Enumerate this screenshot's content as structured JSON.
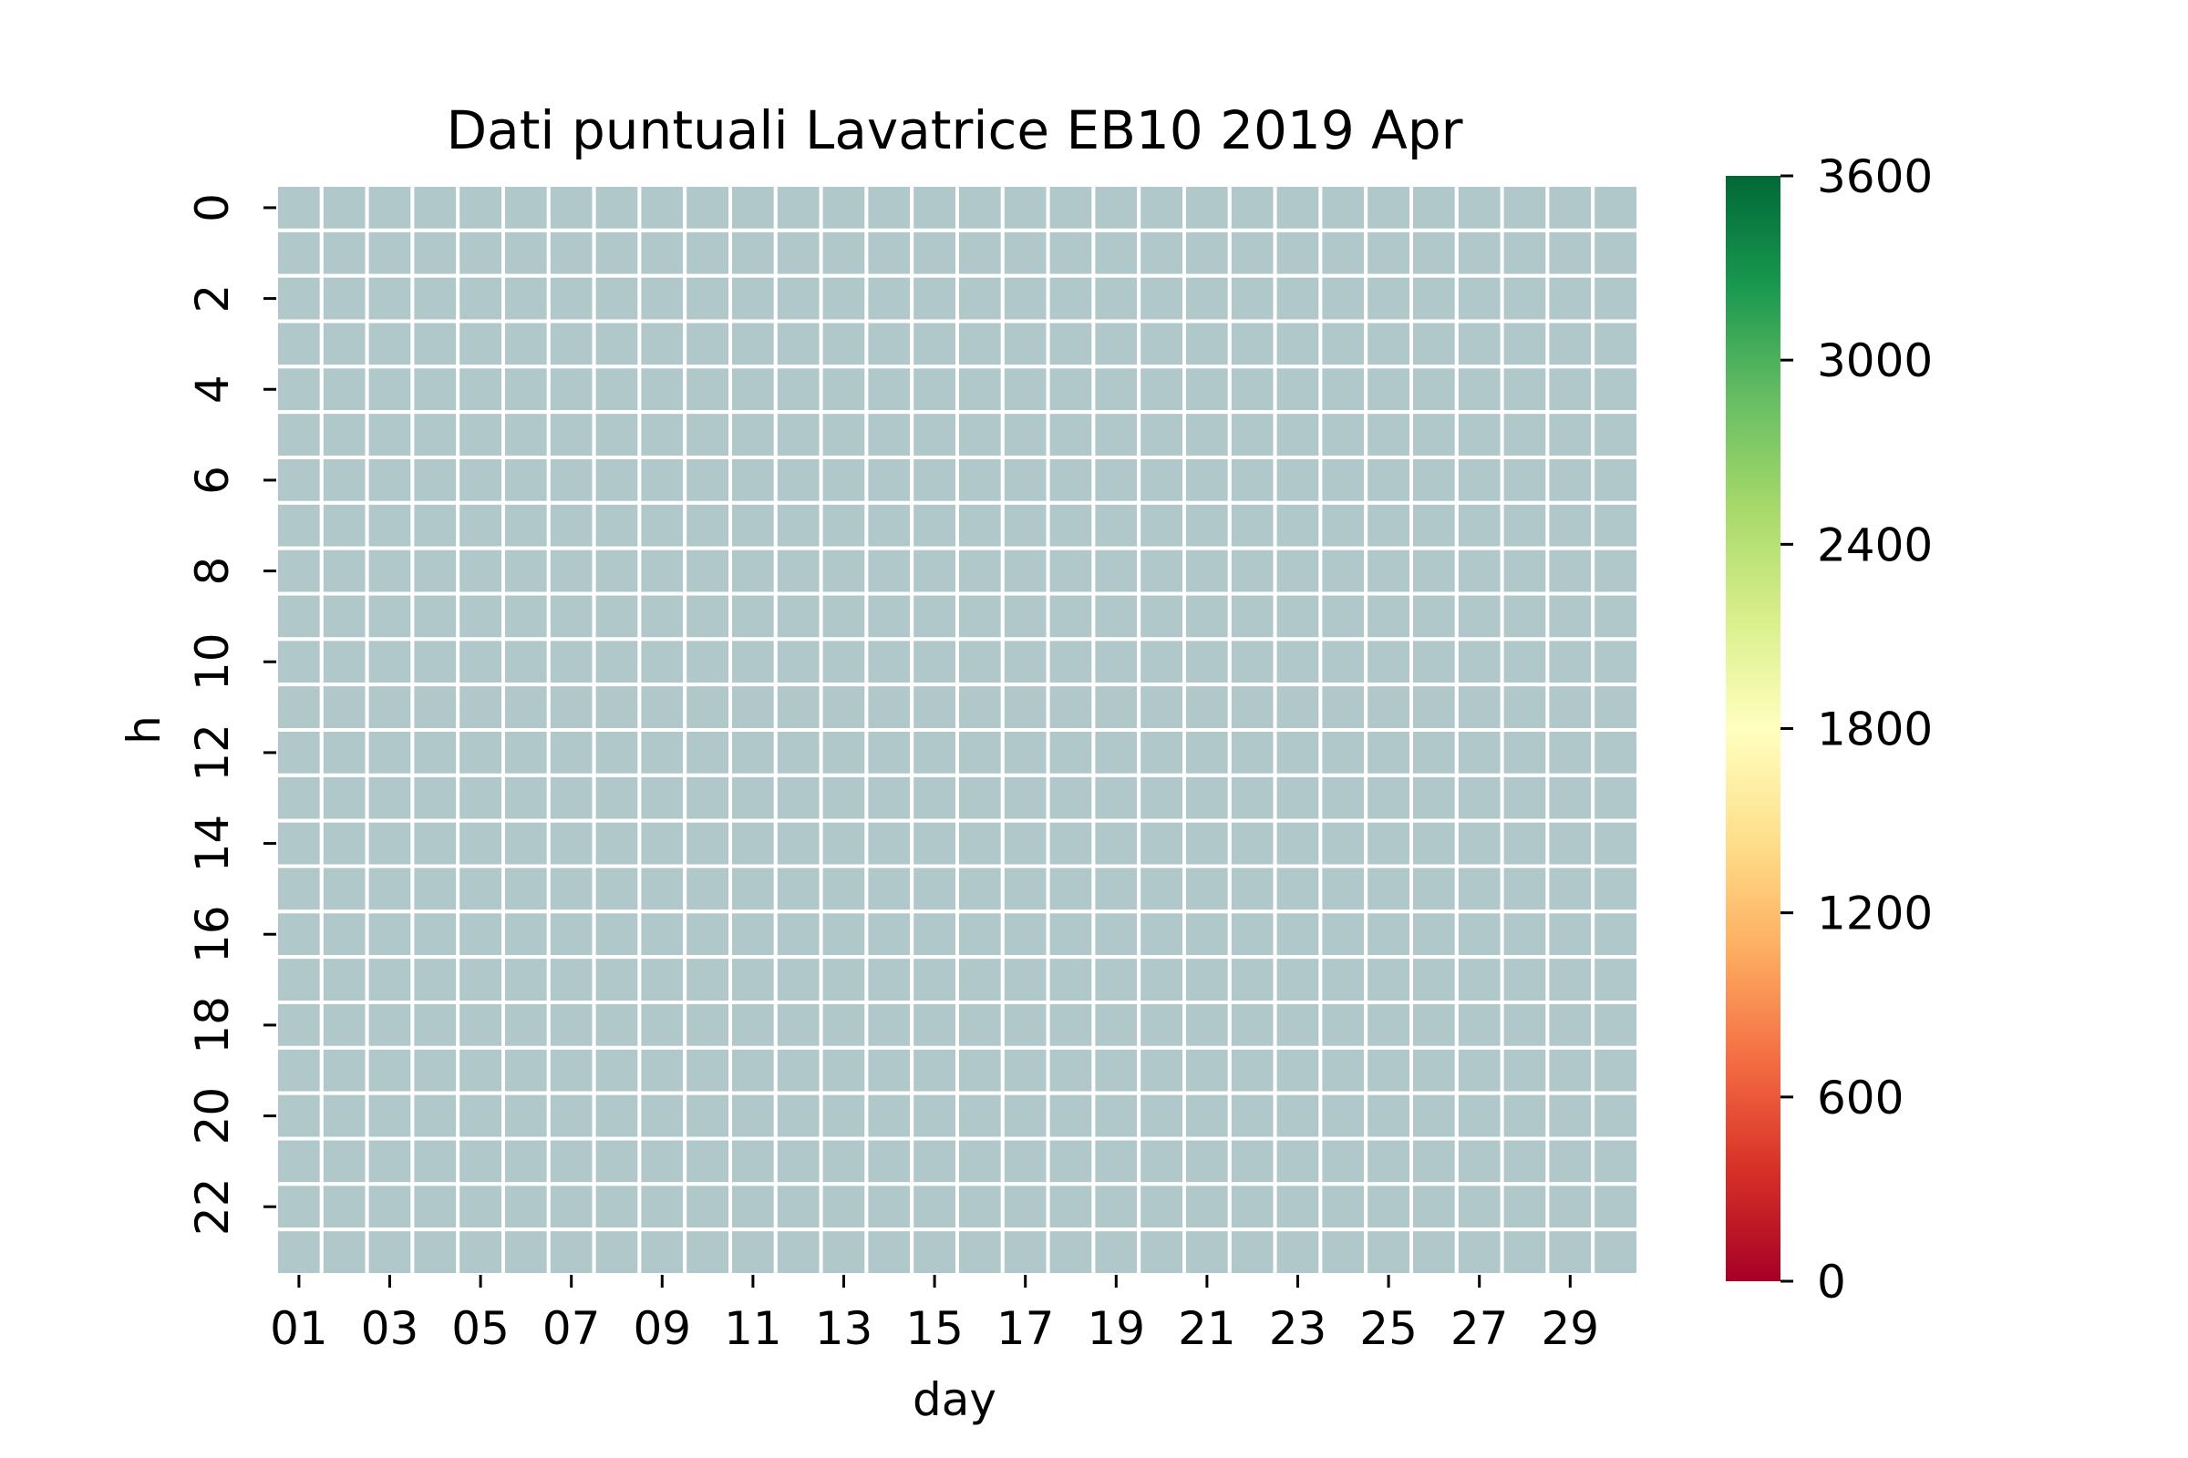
{
  "chart_data": {
    "type": "heatmap",
    "title": "Dati puntuali Lavatrice EB10 2019 Apr",
    "xlabel": "day",
    "ylabel": "h",
    "x_categories": [
      "01",
      "02",
      "03",
      "04",
      "05",
      "06",
      "07",
      "08",
      "09",
      "10",
      "11",
      "12",
      "13",
      "14",
      "15",
      "16",
      "17",
      "18",
      "19",
      "20",
      "21",
      "22",
      "23",
      "24",
      "25",
      "26",
      "27",
      "28",
      "29",
      "30"
    ],
    "x_tick_labels": [
      "01",
      "03",
      "05",
      "07",
      "09",
      "11",
      "13",
      "15",
      "17",
      "19",
      "21",
      "23",
      "25",
      "27",
      "29"
    ],
    "y_categories": [
      0,
      1,
      2,
      3,
      4,
      5,
      6,
      7,
      8,
      9,
      10,
      11,
      12,
      13,
      14,
      15,
      16,
      17,
      18,
      19,
      20,
      21,
      22,
      23
    ],
    "y_tick_labels": [
      "0",
      "2",
      "4",
      "6",
      "8",
      "10",
      "12",
      "14",
      "16",
      "18",
      "20",
      "22"
    ],
    "values": null,
    "missing_color": "#b0c8c9",
    "cell_border_color": "#ffffff",
    "colorbar": {
      "colormap": "RdYlGn",
      "range": [
        0,
        3600
      ],
      "tick_labels": [
        "0",
        "600",
        "1200",
        "1800",
        "2400",
        "3000",
        "3600"
      ],
      "tick_values": [
        0,
        600,
        1200,
        1800,
        2400,
        3000,
        3600
      ],
      "stops": [
        "#a50026",
        "#d73027",
        "#f46d43",
        "#fdae61",
        "#fee08b",
        "#ffffbf",
        "#d9ef8b",
        "#a6d96a",
        "#66bd63",
        "#1a9850",
        "#006837"
      ]
    }
  }
}
